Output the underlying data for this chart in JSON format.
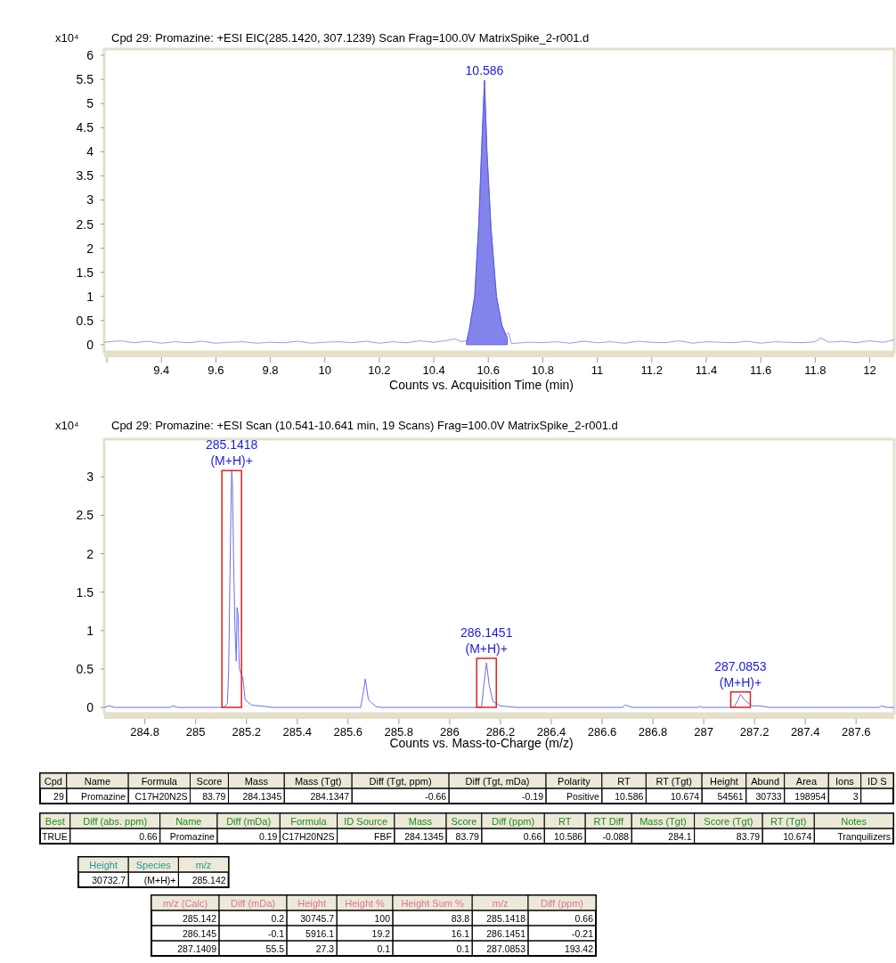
{
  "chart_data": [
    {
      "type": "line",
      "title": "Cpd 29: Promazine: +ESI EIC(285.1420, 307.1239) Scan Frag=100.0V MatrixSpike_2-r001.d",
      "xlabel": "Counts vs. Acquisition Time (min)",
      "ylabel": "x10⁴",
      "xlim": [
        9.19,
        12.09
      ],
      "xticks": [
        {
          "value": 9.2,
          "label": null
        },
        9.4,
        9.6,
        9.8,
        10,
        10.2,
        10.4,
        10.6,
        10.8,
        11,
        11.2,
        11.4,
        11.6,
        11.8,
        12
      ],
      "ylim": [
        -0.15,
        6.13
      ],
      "yticks": [
        0,
        0.5,
        1,
        1.5,
        2,
        2.5,
        3,
        3.5,
        4,
        4.5,
        5,
        5.5,
        6
      ],
      "series": [
        {
          "type": "line",
          "color": "#9a9af2",
          "x": [
            9.19,
            9.25,
            9.3,
            9.35,
            9.4,
            9.45,
            9.5,
            9.55,
            9.6,
            9.65,
            9.7,
            9.75,
            9.8,
            9.85,
            9.9,
            9.95,
            10,
            10.05,
            10.1,
            10.15,
            10.2,
            10.25,
            10.3,
            10.35,
            10.4,
            10.45,
            10.48,
            10.5,
            10.52,
            10.53,
            10.55,
            10.565,
            10.575,
            10.586,
            10.595,
            10.61,
            10.63,
            10.65,
            10.665,
            10.675,
            10.685,
            10.7,
            10.75,
            10.8,
            10.85,
            10.9,
            10.95,
            11,
            11.05,
            11.1,
            11.15,
            11.2,
            11.25,
            11.3,
            11.35,
            11.4,
            11.45,
            11.5,
            11.55,
            11.6,
            11.65,
            11.7,
            11.75,
            11.8,
            11.82,
            11.85,
            11.9,
            11.95,
            12,
            12.05,
            12.09
          ],
          "values": [
            0.05,
            0.08,
            0.04,
            0.07,
            0.03,
            0.06,
            0.04,
            0.07,
            0.03,
            0.05,
            0.06,
            0.03,
            0.05,
            0.04,
            0.07,
            0.03,
            0.05,
            0.06,
            0.04,
            0.07,
            0.03,
            0.06,
            0.04,
            0.08,
            0.05,
            0.09,
            0.12,
            0.06,
            0.08,
            0.3,
            1.0,
            2.5,
            4.0,
            5.48,
            4.0,
            2.4,
            1.0,
            0.4,
            0.2,
            0.25,
            0.02,
            0.03,
            0.05,
            0.04,
            0.06,
            0.03,
            0.07,
            0.04,
            0.06,
            0.03,
            0.07,
            0.05,
            0.04,
            0.08,
            0.03,
            0.06,
            0.05,
            0.04,
            0.07,
            0.03,
            0.06,
            0.05,
            0.04,
            0.06,
            0.14,
            0.05,
            0.07,
            0.04,
            0.08,
            0.05,
            0.1
          ]
        },
        {
          "type": "area",
          "color": "#5a5ae6",
          "x": [
            10.52,
            10.53,
            10.55,
            10.565,
            10.575,
            10.586,
            10.595,
            10.61,
            10.63,
            10.65,
            10.665,
            10.67
          ],
          "values": [
            0.05,
            0.3,
            1.0,
            2.5,
            4.0,
            5.48,
            4.0,
            2.4,
            1.0,
            0.4,
            0.2,
            0.15
          ]
        }
      ],
      "annotations": [
        {
          "text": "10.586",
          "x": 10.586,
          "y": 5.48
        }
      ]
    },
    {
      "type": "line",
      "title": "Cpd 29: Promazine: +ESI Scan (10.541-10.641 min, 19 Scans) Frag=100.0V MatrixSpike_2-r001.d",
      "xlabel": "Counts vs. Mass-to-Charge (m/z)",
      "ylabel": "x10⁴",
      "xlim": [
        284.64,
        287.75
      ],
      "xticks": [
        284.8,
        285,
        285.2,
        285.4,
        285.6,
        285.8,
        286,
        286.2,
        286.4,
        286.6,
        286.8,
        287,
        287.2,
        287.4,
        287.6
      ],
      "ylim": [
        -0.08,
        3.49
      ],
      "yticks": [
        0,
        0.5,
        1,
        1.5,
        2,
        2.5,
        3
      ],
      "series": [
        {
          "type": "line",
          "color": "#6c6cf0",
          "x": [
            284.64,
            284.66,
            284.68,
            284.9,
            284.91,
            284.93,
            285.11,
            285.125,
            285.13,
            285.135,
            285.14,
            285.142,
            285.145,
            285.15,
            285.155,
            285.16,
            285.163,
            285.167,
            285.172,
            285.186,
            285.195,
            285.22,
            285.28,
            285.3,
            285.65,
            285.66,
            285.668,
            285.68,
            285.71,
            285.73,
            286.125,
            286.135,
            286.145,
            286.155,
            286.17,
            286.2,
            286.26,
            286.68,
            286.69,
            286.72,
            286.98,
            286.985,
            286.99,
            287.12,
            287.135,
            287.145,
            287.16,
            287.19,
            287.22,
            287.26,
            287.69,
            287.7,
            287.72,
            287.75
          ],
          "values": [
            0,
            0.02,
            0,
            0,
            0.02,
            0,
            0,
            0.05,
            0.5,
            1.7,
            2.8,
            3.08,
            2.9,
            1.8,
            1,
            0.6,
            1.3,
            1.2,
            0.5,
            0.38,
            0.1,
            0.03,
            0.01,
            0,
            0,
            0.2,
            0.37,
            0.1,
            0.01,
            0,
            0,
            0.3,
            0.58,
            0.3,
            0.08,
            0.02,
            0,
            0,
            0.03,
            0,
            0,
            0.02,
            0,
            0,
            0.1,
            0.17,
            0.1,
            0.02,
            0.02,
            0,
            0,
            0.02,
            0,
            0
          ]
        }
      ],
      "annotations": [
        {
          "text": "285.1418\n(M+H)+",
          "x": 285.142,
          "y": 3.08
        },
        {
          "text": "286.1451\n(M+H)+",
          "x": 286.145,
          "y": 0.64
        },
        {
          "text": "287.0853\n(M+H)+",
          "x": 287.145,
          "y": 0.2
        }
      ]
    },
    {
      "type": "other",
      "color": "#000000",
      "categories": [
        "Cpd",
        "Name",
        "Formula",
        "Score",
        "Mass",
        "Mass (Tgt)",
        "Diff (Tgt, ppm)",
        "Diff (Tgt, mDa)",
        "Polarity",
        "RT",
        "RT (Tgt)",
        "Height",
        "Abund",
        "Area",
        "Ions",
        "ID S"
      ],
      "cell_labels": [
        [
          "29",
          "Promazine",
          "C17H20N2S",
          "83.79",
          "284.1345",
          "284.1347",
          "-0.66",
          "-0.19",
          "Positive",
          "10.586",
          "10.674",
          "54561",
          "30733",
          "198954",
          "3",
          null
        ]
      ]
    },
    {
      "type": "other",
      "color": "#1e8c1e",
      "categories": [
        "Best",
        "Diff (abs. ppm)",
        "Name",
        "Diff (mDa)",
        "Formula",
        "ID Source",
        "Mass",
        "Score",
        "Diff (ppm)",
        "RT",
        "RT Diff",
        "Mass (Tgt)",
        "Score (Tgt)",
        "RT (Tgt)",
        "Notes"
      ],
      "cell_labels": [
        [
          "TRUE",
          "0.66",
          "Promazine",
          "0.19",
          "C17H20N2S",
          "FBF",
          "284.1345",
          "83.79",
          "0.66",
          "10.586",
          "-0.088",
          "284.1",
          "83.79",
          "10.674",
          "Tranquilizers"
        ]
      ]
    },
    {
      "type": "other",
      "color": "#1e9a9a",
      "categories": [
        "Height",
        "Species",
        "m/z"
      ],
      "cell_labels": [
        [
          "30732.7",
          "(M+H)+",
          "285.142"
        ]
      ]
    },
    {
      "type": "other",
      "color": "#e0709a",
      "categories": [
        "m/z (Calc)",
        "Diff (mDa)",
        "Height",
        "Height %",
        "Height Sum %",
        "m/z",
        "Diff (ppm)"
      ],
      "cell_labels": [
        [
          "285.142",
          "0.2",
          "30745.7",
          "100",
          "83.8",
          "285.1418",
          "0.66"
        ],
        [
          "286.145",
          "-0.1",
          "5916.1",
          "19.2",
          "16.1",
          "286.1451",
          "-0.21"
        ],
        [
          "287.1409",
          "55.5",
          "27.3",
          "0.1",
          "0.1",
          "287.0853",
          "193.42"
        ]
      ]
    }
  ]
}
